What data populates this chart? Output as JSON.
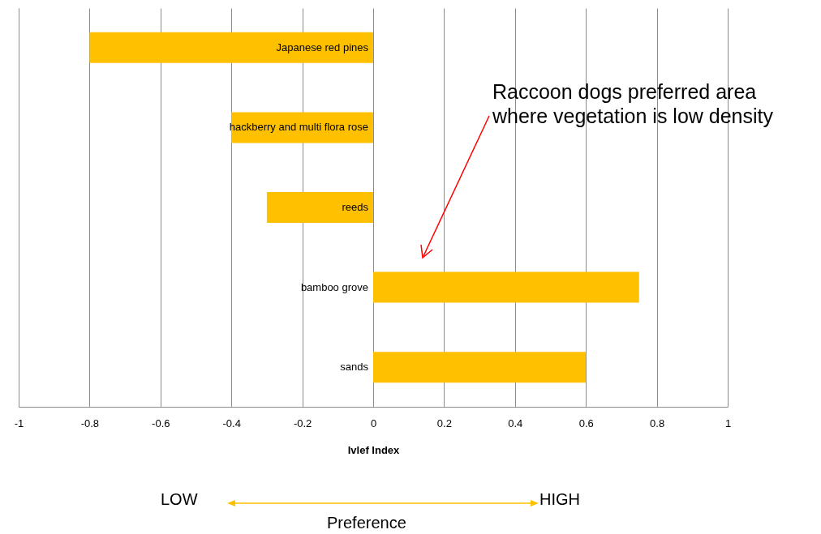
{
  "chart_data": {
    "type": "bar",
    "orientation": "horizontal",
    "categories": [
      "Japanese red pines",
      "hackberry and multi flora rose",
      "reeds",
      "bamboo grove",
      "sands"
    ],
    "values": [
      -0.8,
      -0.4,
      -0.3,
      0.75,
      0.6
    ],
    "color": "#ffc000",
    "xlim": [
      -1,
      1
    ],
    "xticks": [
      -1,
      -0.8,
      -0.6,
      -0.4,
      -0.2,
      0,
      0.2,
      0.4,
      0.6,
      0.8,
      1
    ],
    "xlabel": "Ivlef  Index",
    "grid": "x",
    "annotations": [
      "Raccoon dogs preferred area where vegetation is low density",
      "LOW",
      "HIGH",
      "Preference"
    ]
  }
}
